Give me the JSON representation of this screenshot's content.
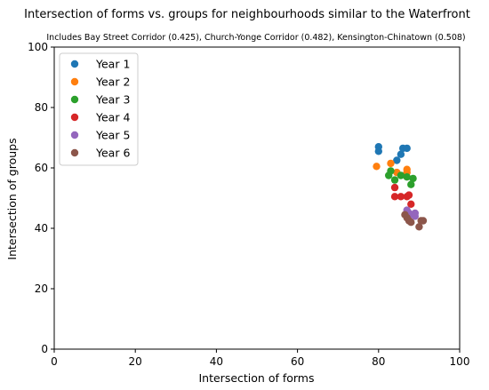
{
  "chart_data": {
    "type": "scatter",
    "title": "Intersection of forms vs. groups for neighbourhoods similar to the Waterfront",
    "subtitle": "Includes Bay Street Corridor (0.425), Church-Yonge Corridor (0.482), Kensington-Chinatown (0.508)",
    "xlabel": "Intersection of forms",
    "ylabel": "Intersection of groups",
    "xlim": [
      0,
      100
    ],
    "ylim": [
      0,
      100
    ],
    "xticks": [
      "0",
      "20",
      "40",
      "60",
      "80",
      "100"
    ],
    "yticks": [
      "0",
      "20",
      "40",
      "60",
      "80",
      "100"
    ],
    "grid": false,
    "legend_position": "top-left",
    "series": [
      {
        "name": "Year 1",
        "color": "#1f77b4",
        "points": [
          [
            80,
            67
          ],
          [
            80,
            65.5
          ],
          [
            84.5,
            62.5
          ],
          [
            85.5,
            64.5
          ],
          [
            86,
            66.5
          ],
          [
            87,
            66.5
          ]
        ]
      },
      {
        "name": "Year 2",
        "color": "#ff7f0e",
        "points": [
          [
            79.5,
            60.5
          ],
          [
            83,
            61.5
          ],
          [
            84.5,
            58.5
          ],
          [
            87,
            59.5
          ],
          [
            87,
            58.5
          ]
        ]
      },
      {
        "name": "Year 3",
        "color": "#2ca02c",
        "points": [
          [
            82.5,
            57.5
          ],
          [
            83,
            59
          ],
          [
            84,
            56
          ],
          [
            85.5,
            57.5
          ],
          [
            87,
            57
          ],
          [
            88,
            54.5
          ],
          [
            88.5,
            56.5
          ]
        ]
      },
      {
        "name": "Year 4",
        "color": "#d62728",
        "points": [
          [
            84,
            53.5
          ],
          [
            84,
            50.5
          ],
          [
            85.5,
            50.5
          ],
          [
            87,
            50.5
          ],
          [
            87.5,
            51
          ],
          [
            88,
            48
          ]
        ]
      },
      {
        "name": "Year 5",
        "color": "#9467bd",
        "points": [
          [
            87,
            46
          ],
          [
            87.5,
            45
          ],
          [
            88,
            44.5
          ],
          [
            89,
            45
          ],
          [
            89,
            44
          ]
        ]
      },
      {
        "name": "Year 6",
        "color": "#8c564b",
        "points": [
          [
            86.5,
            44.5
          ],
          [
            87,
            43.5
          ],
          [
            87.5,
            42.5
          ],
          [
            88,
            42
          ],
          [
            90,
            40.5
          ],
          [
            90.5,
            42.5
          ],
          [
            91,
            42.5
          ]
        ]
      }
    ]
  }
}
